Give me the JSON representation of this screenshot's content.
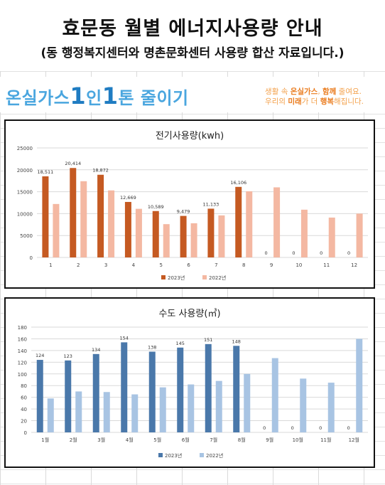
{
  "header": {
    "title": "효문동 월별 에너지사용량 안내",
    "subtitle": "(동 행정복지센터와 명촌문화센터 사용량 합산 자료입니다.)"
  },
  "banner": {
    "logo_part1": "온실가스",
    "logo_num1": "1",
    "logo_part2": "인",
    "logo_num2": "1",
    "logo_part3": "톤 줄이기",
    "slogan_line1_a": "생활 속 ",
    "slogan_line1_b": "온실가스",
    "slogan_line1_c": ", ",
    "slogan_line1_d": "함께",
    "slogan_line1_e": " 줄여요.",
    "slogan_line2_a": "우리의 ",
    "slogan_line2_b": "미래",
    "slogan_line2_c": "가 더 ",
    "slogan_line2_d": "행복",
    "slogan_line2_e": "해집니다."
  },
  "chart_data": [
    {
      "type": "bar",
      "title": "전기사용량(kwh)",
      "categories": [
        "1",
        "2",
        "3",
        "4",
        "5",
        "6",
        "7",
        "8",
        "9",
        "10",
        "11",
        "12"
      ],
      "series": [
        {
          "name": "2023년",
          "color": "#c55a22",
          "values": [
            18511,
            20414,
            18872,
            12669,
            10589,
            9479,
            11133,
            16106,
            0,
            0,
            0,
            0
          ],
          "labels": [
            "18,511",
            "20,414",
            "18,872",
            "12,669",
            "10,589",
            "9,479",
            "11,133",
            "16,106",
            "0",
            "0",
            "0",
            "0"
          ]
        },
        {
          "name": "2022년",
          "color": "#f4b8a2",
          "values": [
            12200,
            17400,
            15300,
            11100,
            7600,
            7800,
            9600,
            15100,
            16000,
            10900,
            9100,
            10000
          ]
        }
      ],
      "ylim": [
        0,
        25000
      ],
      "yticks": [
        "0",
        "5000",
        "10000",
        "15000",
        "20000",
        "25000"
      ],
      "grid": true,
      "legend": "bottom"
    },
    {
      "type": "bar",
      "title": "수도 사용량(㎥)",
      "categories": [
        "1월",
        "2월",
        "3월",
        "4월",
        "5월",
        "6월",
        "7월",
        "8월",
        "9월",
        "10월",
        "11월",
        "12월"
      ],
      "series": [
        {
          "name": "2023년",
          "color": "#4a78aa",
          "values": [
            124,
            123,
            134,
            154,
            138,
            145,
            151,
            148,
            0,
            0,
            0,
            0
          ],
          "labels": [
            "124",
            "123",
            "134",
            "154",
            "138",
            "145",
            "151",
            "148",
            "0",
            "0",
            "0",
            "0"
          ]
        },
        {
          "name": "2022년",
          "color": "#a8c4e3",
          "values": [
            58,
            70,
            69,
            65,
            77,
            82,
            88,
            100,
            127,
            92,
            85,
            160
          ]
        }
      ],
      "ylim": [
        0,
        180
      ],
      "yticks": [
        "0",
        "20",
        "40",
        "60",
        "80",
        "100",
        "120",
        "140",
        "160",
        "180"
      ],
      "grid": true,
      "legend": "bottom"
    }
  ]
}
